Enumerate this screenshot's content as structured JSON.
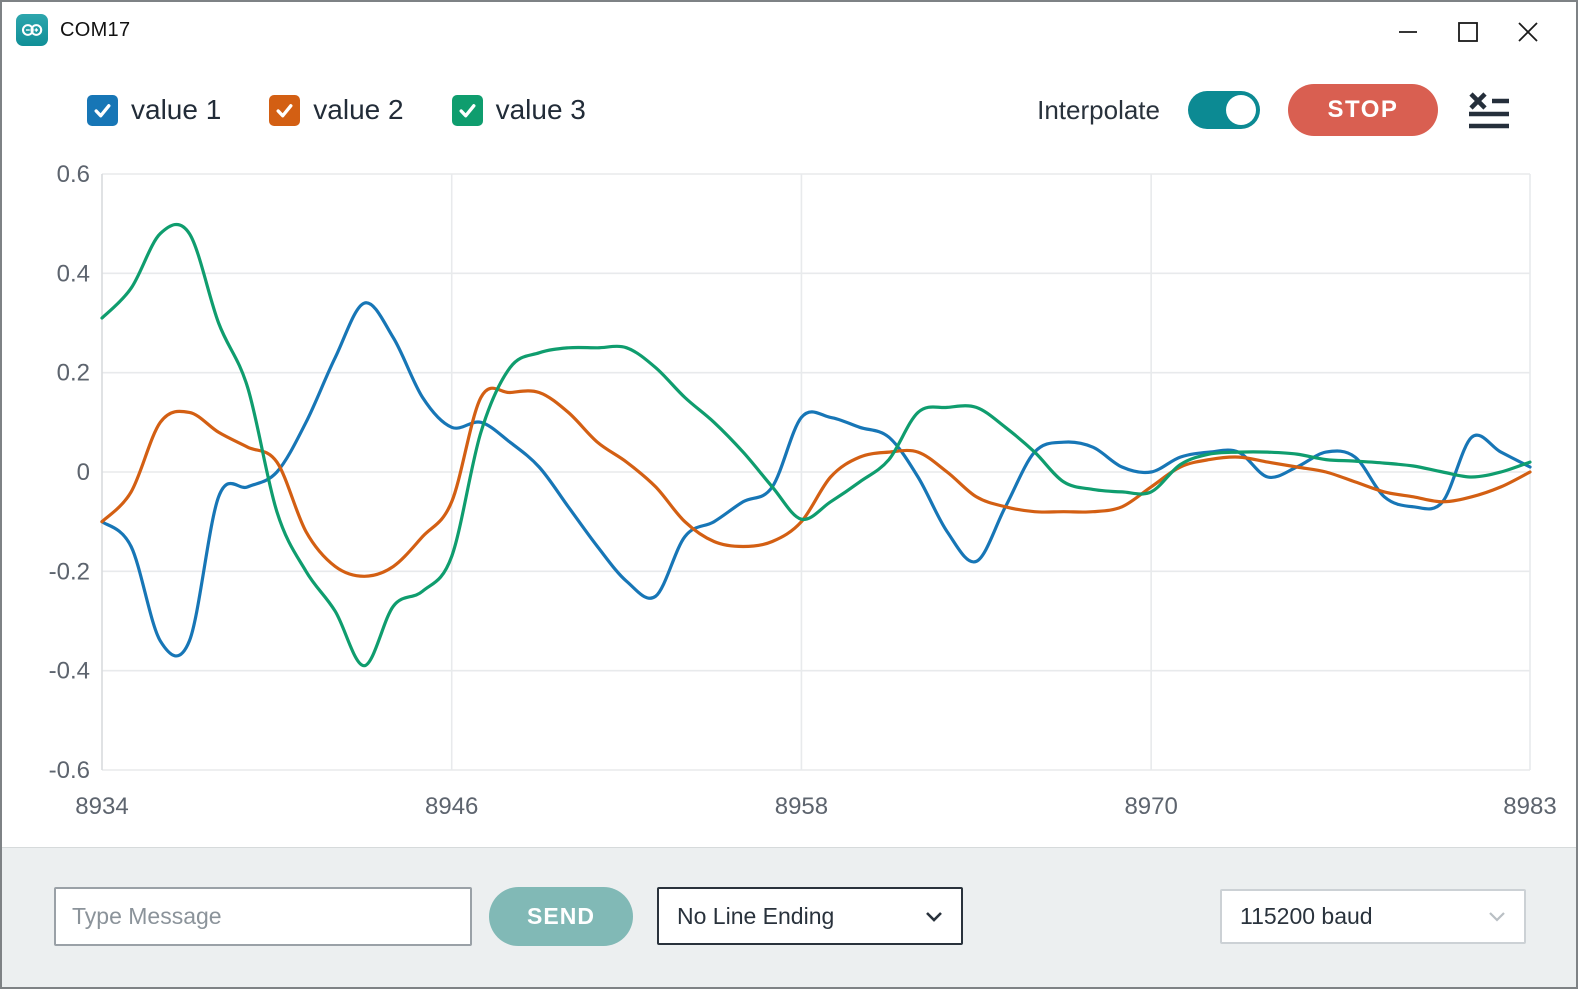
{
  "window": {
    "title": "COM17"
  },
  "toolbar": {
    "interpolate_label": "Interpolate",
    "interpolate_enabled": true,
    "stop_label": "STOP"
  },
  "bottom_bar": {
    "message_placeholder": "Type Message",
    "send_label": "SEND",
    "line_ending_selected": "No Line Ending",
    "baud_selected": "115200 baud"
  },
  "colors": {
    "accent_teal": "#0c8a93",
    "stop_red": "#d95f51",
    "send_teal": "#81b9b6",
    "grid": "#e8eaec",
    "axis_text": "#5d646e",
    "dark_text": "#29323c"
  },
  "chart_data": {
    "type": "line",
    "title": "",
    "xlabel": "",
    "ylabel": "",
    "ylim": [
      -0.6,
      0.6
    ],
    "yticks": [
      0.6,
      0.4,
      0.2,
      0,
      -0.2,
      -0.4,
      -0.6
    ],
    "xticks": [
      8934,
      8946,
      8958,
      8970,
      8983
    ],
    "grid": true,
    "legend_position": "top-left",
    "interpolate": true,
    "x": [
      8934,
      8935,
      8936,
      8937,
      8938,
      8939,
      8940,
      8941,
      8942,
      8943,
      8944,
      8945,
      8946,
      8947,
      8948,
      8949,
      8950,
      8951,
      8952,
      8953,
      8954,
      8955,
      8956,
      8957,
      8958,
      8959,
      8960,
      8961,
      8962,
      8963,
      8964,
      8965,
      8966,
      8967,
      8968,
      8969,
      8970,
      8971,
      8972,
      8973,
      8974,
      8975,
      8976,
      8977,
      8978,
      8979,
      8980,
      8981,
      8982,
      8983
    ],
    "series": [
      {
        "name": "value 1",
        "color": "#1776b6",
        "checked": true,
        "values": [
          -0.1,
          -0.15,
          -0.34,
          -0.34,
          -0.05,
          -0.03,
          0.0,
          0.1,
          0.23,
          0.34,
          0.27,
          0.15,
          0.09,
          0.1,
          0.06,
          0.01,
          -0.07,
          -0.15,
          -0.22,
          -0.25,
          -0.13,
          -0.1,
          -0.06,
          -0.03,
          0.11,
          0.11,
          0.09,
          0.07,
          -0.01,
          -0.12,
          -0.18,
          -0.07,
          0.04,
          0.06,
          0.05,
          0.01,
          0.0,
          0.03,
          0.04,
          0.04,
          -0.01,
          0.01,
          0.04,
          0.03,
          -0.05,
          -0.07,
          -0.06,
          0.07,
          0.04,
          0.01
        ]
      },
      {
        "name": "value 2",
        "color": "#d35f13",
        "checked": true,
        "values": [
          -0.1,
          -0.04,
          0.1,
          0.12,
          0.08,
          0.05,
          0.02,
          -0.12,
          -0.19,
          -0.21,
          -0.19,
          -0.13,
          -0.06,
          0.15,
          0.16,
          0.16,
          0.12,
          0.06,
          0.02,
          -0.03,
          -0.1,
          -0.14,
          -0.15,
          -0.14,
          -0.1,
          -0.01,
          0.03,
          0.04,
          0.04,
          0.0,
          -0.05,
          -0.07,
          -0.08,
          -0.08,
          -0.08,
          -0.07,
          -0.03,
          0.01,
          0.025,
          0.03,
          0.02,
          0.01,
          0.0,
          -0.02,
          -0.04,
          -0.05,
          -0.06,
          -0.05,
          -0.03,
          0.0
        ]
      },
      {
        "name": "value 3",
        "color": "#0f9d6e",
        "checked": true,
        "values": [
          0.31,
          0.37,
          0.48,
          0.48,
          0.3,
          0.17,
          -0.08,
          -0.2,
          -0.28,
          -0.39,
          -0.27,
          -0.24,
          -0.17,
          0.08,
          0.21,
          0.24,
          0.25,
          0.25,
          0.25,
          0.21,
          0.15,
          0.1,
          0.04,
          -0.03,
          -0.095,
          -0.06,
          -0.02,
          0.025,
          0.12,
          0.13,
          0.13,
          0.09,
          0.04,
          -0.02,
          -0.035,
          -0.04,
          -0.04,
          0.015,
          0.036,
          0.04,
          0.04,
          0.036,
          0.025,
          0.022,
          0.018,
          0.012,
          0.0,
          -0.01,
          0.0,
          0.02
        ]
      }
    ]
  }
}
